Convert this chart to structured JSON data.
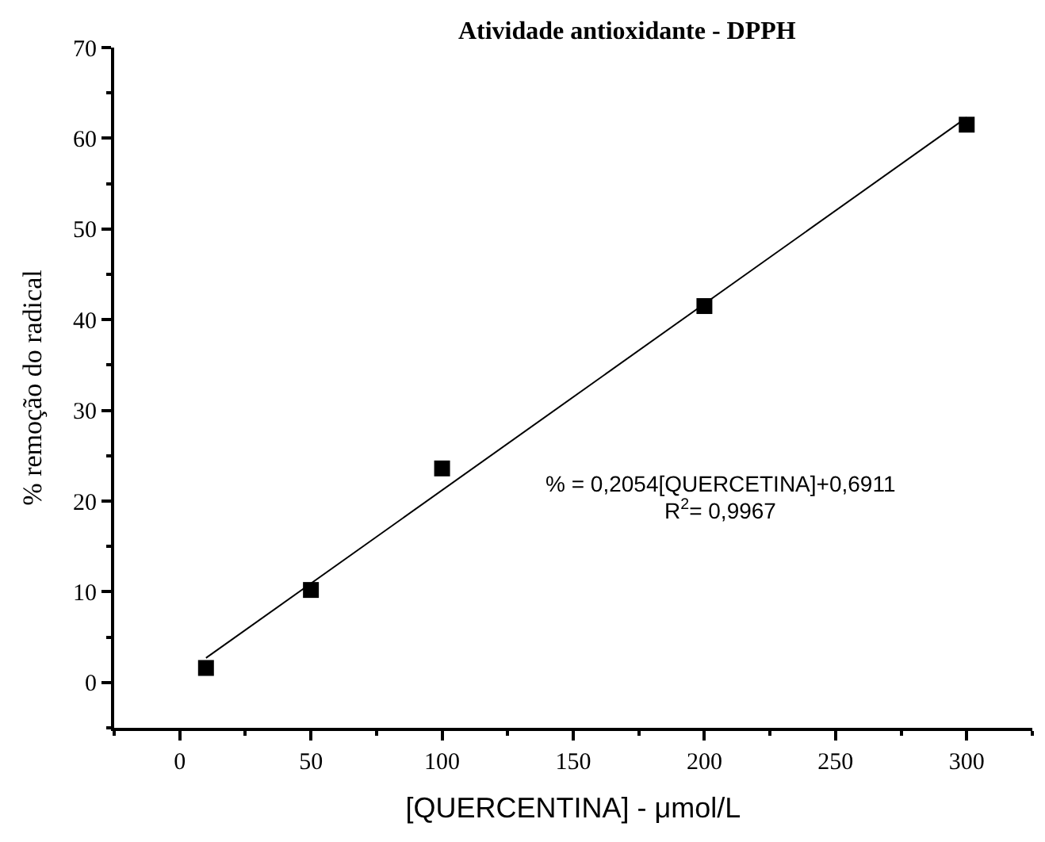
{
  "chart_data": {
    "type": "scatter",
    "title": "Atividade antioxidante - DPPH",
    "xlabel": "[QUERCENTINA] - μmol/L",
    "ylabel": "% remoção do radical",
    "series": [
      {
        "color": "#000000",
        "marker": "square",
        "x": [
          10,
          50,
          100,
          200,
          300
        ],
        "values": [
          1.6,
          10.2,
          23.6,
          41.5,
          61.5
        ]
      },
      {
        "type": "line",
        "color": "#000000",
        "marker": "none",
        "line_style": "solid",
        "x": [
          10,
          300
        ],
        "values": [
          2.7,
          62.3
        ]
      }
    ],
    "annotations": [
      "% = 0,2054[QUERCETINA]+0,6911",
      "R$^{2}$= 0,9967"
    ],
    "xlim": [
      -25,
      325
    ],
    "xticks": [
      0,
      50,
      100,
      150,
      200,
      250,
      300
    ],
    "ylim": [
      -5,
      70
    ],
    "yticks": [
      0,
      10,
      20,
      30,
      40,
      50,
      60,
      70
    ]
  }
}
